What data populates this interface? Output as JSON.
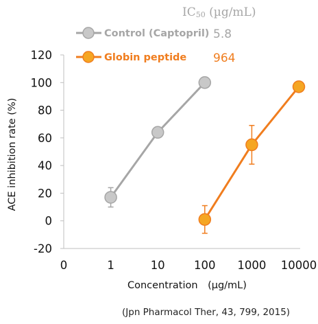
{
  "ic50_header": {
    "label": "IC",
    "subscript": "50",
    "unit": " (µg/mL)"
  },
  "source": "(Jpn Pharmacol Ther, 43, 799, 2015)",
  "chart_data": {
    "type": "line",
    "ylabel": "ACE inhibition rate (%)",
    "xlabel": "Concentration　(µg/mL)",
    "x_scale": "log",
    "x_ticks": [
      "0",
      "1",
      "10",
      "100",
      "1000",
      "10000"
    ],
    "y_ticks": [
      -20,
      0,
      20,
      40,
      60,
      80,
      100,
      120
    ],
    "ylim": [
      -20,
      120
    ],
    "grid": false,
    "legend_position": "top",
    "series": [
      {
        "name": "Control (Captopril)",
        "ic50": "5.8",
        "color": "#a6a6a6",
        "marker_fill": "#c8c8c8",
        "points": [
          {
            "x": 1,
            "y": 17,
            "err": 7
          },
          {
            "x": 10,
            "y": 64,
            "err": null
          },
          {
            "x": 100,
            "y": 100,
            "err": null
          }
        ]
      },
      {
        "name": "Globin peptide",
        "ic50": "964",
        "color": "#f07d1e",
        "marker_fill": "#f5a623",
        "points": [
          {
            "x": 100,
            "y": 1,
            "err": 10
          },
          {
            "x": 1000,
            "y": 55,
            "err": 14
          },
          {
            "x": 10000,
            "y": 97,
            "err": null
          }
        ]
      }
    ]
  }
}
